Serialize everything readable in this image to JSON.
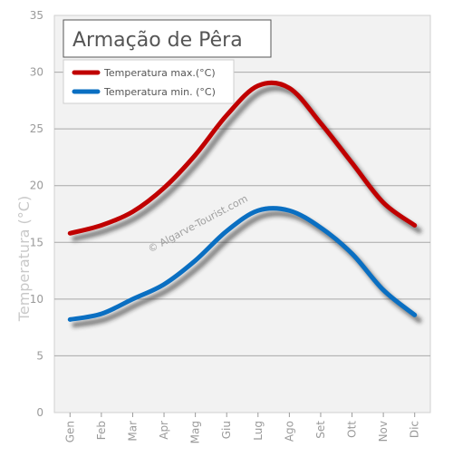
{
  "chart_data": {
    "type": "line",
    "title": "Armação de Pêra",
    "ylabel": "Temperatura (°C)",
    "xlabel": "",
    "watermark": "© Algarve-Tourist.com",
    "categories": [
      "Gen",
      "Feb",
      "Mar",
      "Apr",
      "Mag",
      "Giu",
      "Lug",
      "Ago",
      "Set",
      "Ott",
      "Nov",
      "Dic"
    ],
    "yticks": [
      0,
      5,
      10,
      15,
      20,
      25,
      30,
      35
    ],
    "ylim": [
      0,
      35
    ],
    "grid": true,
    "legend_placement": "top-left",
    "series": [
      {
        "name": "Temperatura max.(°C)",
        "color": "#c00000",
        "values": [
          15.8,
          16.5,
          17.7,
          19.8,
          22.7,
          26.2,
          28.8,
          28.6,
          25.5,
          22.0,
          18.5,
          16.5
        ]
      },
      {
        "name": "Temperatura min. (°C)",
        "color": "#0a6fc2",
        "values": [
          8.2,
          8.7,
          10.0,
          11.3,
          13.4,
          16.0,
          17.8,
          17.8,
          16.3,
          14.0,
          10.8,
          8.6
        ]
      }
    ]
  }
}
